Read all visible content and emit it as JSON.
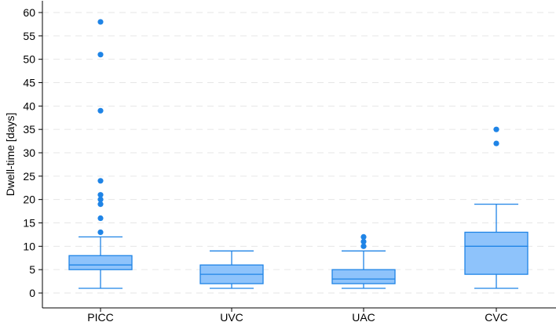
{
  "chart_data": {
    "type": "boxplot",
    "title": "",
    "xlabel": "",
    "ylabel": "Dwell-time [days]",
    "ylim": [
      0,
      60
    ],
    "yticks": [
      0,
      5,
      10,
      15,
      20,
      25,
      30,
      35,
      40,
      45,
      50,
      55,
      60
    ],
    "grid": "horizontal dashed",
    "legend": "none",
    "colors": {
      "box_fill": "#8ec3fb",
      "box_stroke": "#1f84e6",
      "outlier": "#1f84e6",
      "grid": "#e6e6e6",
      "axis": "#000000"
    },
    "categories": [
      "PICC",
      "UVC",
      "UAC",
      "CVC"
    ],
    "boxes": [
      {
        "category": "PICC",
        "whisker_low": 1,
        "q1": 5,
        "median": 6,
        "q3": 8,
        "whisker_high": 12,
        "outliers": [
          13,
          16,
          19,
          20,
          21,
          24,
          39,
          51,
          58
        ]
      },
      {
        "category": "UVC",
        "whisker_low": 1,
        "q1": 2,
        "median": 4,
        "q3": 6,
        "whisker_high": 9,
        "outliers": []
      },
      {
        "category": "UAC",
        "whisker_low": 1,
        "q1": 2,
        "median": 3,
        "q3": 5,
        "whisker_high": 9,
        "outliers": [
          10,
          11,
          12
        ]
      },
      {
        "category": "CVC",
        "whisker_low": 1,
        "q1": 4,
        "median": 10,
        "q3": 13,
        "whisker_high": 19,
        "outliers": [
          32,
          35
        ]
      }
    ]
  }
}
